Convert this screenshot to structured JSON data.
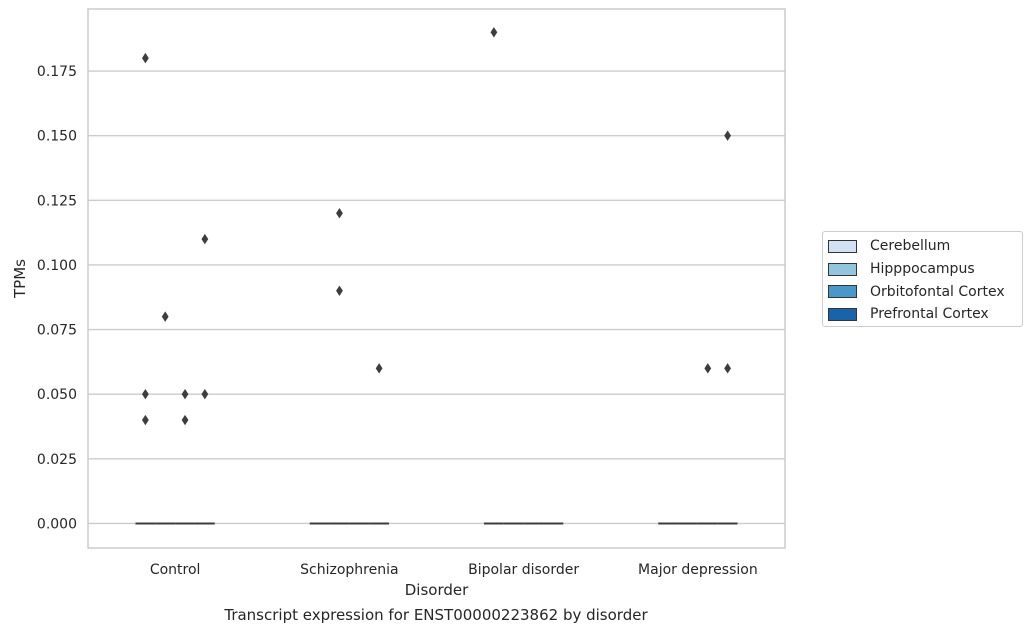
{
  "caption": "Transcript expression for ENST00000223862 by disorder",
  "chart_data": {
    "type": "box",
    "xlabel": "Disorder",
    "ylabel": "TPMs",
    "categories": [
      "Control",
      "Schizophrenia",
      "Bipolar disorder",
      "Major depression"
    ],
    "ylim": [
      -0.0095,
      0.199
    ],
    "yticks": [
      0.0,
      0.025,
      0.05,
      0.075,
      0.1,
      0.125,
      0.15,
      0.175
    ],
    "ytick_labels": [
      "0.000",
      "0.025",
      "0.050",
      "0.075",
      "0.100",
      "0.125",
      "0.150",
      "0.175"
    ],
    "grid": "horizontal",
    "legend_position": "right",
    "series": [
      {
        "name": "Cerebellum",
        "color": "#cfe1f2",
        "median": [
          0,
          0,
          0,
          0
        ],
        "outliers": [
          [
            0.18,
            0.05,
            0.04
          ],
          [],
          [
            0.19
          ],
          []
        ]
      },
      {
        "name": "Hipppocampus",
        "color": "#93c4de",
        "median": [
          0,
          0,
          0,
          0
        ],
        "outliers": [
          [
            0.08
          ],
          [
            0.12,
            0.09
          ],
          [],
          []
        ]
      },
      {
        "name": "Orbitofontal Cortex",
        "color": "#4a98c9",
        "median": [
          0,
          0,
          0,
          0
        ],
        "outliers": [
          [
            0.05,
            0.04
          ],
          [],
          [],
          [
            0.06
          ]
        ]
      },
      {
        "name": "Prefrontal Cortex",
        "color": "#1764ab",
        "median": [
          0,
          0,
          0,
          0
        ],
        "outliers": [
          [
            0.11,
            0.05
          ],
          [
            0.06
          ],
          [],
          [
            0.15,
            0.06
          ]
        ]
      }
    ]
  }
}
